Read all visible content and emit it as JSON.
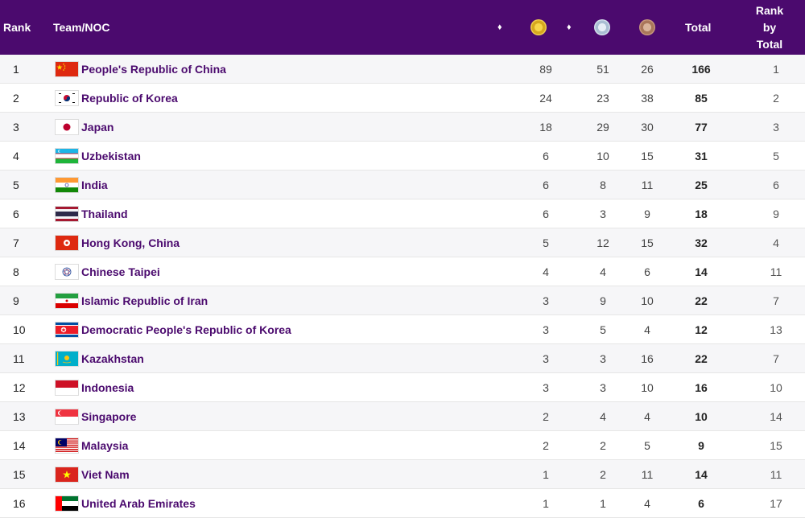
{
  "header": {
    "rank": "Rank",
    "team": "Team/NOC",
    "sort_glyph": "♦",
    "total": "Total",
    "rank_by_total_lines": [
      "Rank",
      "by",
      "Total"
    ]
  },
  "rows": [
    {
      "rank": "1",
      "flag": "china-flag-icon",
      "name": "People's Republic of China",
      "gold": "89",
      "silver": "51",
      "bronze": "26",
      "total": "166",
      "rank_by_total": "1"
    },
    {
      "rank": "2",
      "flag": "korea-flag-icon",
      "name": "Republic of Korea",
      "gold": "24",
      "silver": "23",
      "bronze": "38",
      "total": "85",
      "rank_by_total": "2"
    },
    {
      "rank": "3",
      "flag": "japan-flag-icon",
      "name": "Japan",
      "gold": "18",
      "silver": "29",
      "bronze": "30",
      "total": "77",
      "rank_by_total": "3"
    },
    {
      "rank": "4",
      "flag": "uzbekistan-flag-icon",
      "name": "Uzbekistan",
      "gold": "6",
      "silver": "10",
      "bronze": "15",
      "total": "31",
      "rank_by_total": "5"
    },
    {
      "rank": "5",
      "flag": "india-flag-icon",
      "name": "India",
      "gold": "6",
      "silver": "8",
      "bronze": "11",
      "total": "25",
      "rank_by_total": "6"
    },
    {
      "rank": "6",
      "flag": "thailand-flag-icon",
      "name": "Thailand",
      "gold": "6",
      "silver": "3",
      "bronze": "9",
      "total": "18",
      "rank_by_total": "9"
    },
    {
      "rank": "7",
      "flag": "hongkong-flag-icon",
      "name": "Hong Kong, China",
      "gold": "5",
      "silver": "12",
      "bronze": "15",
      "total": "32",
      "rank_by_total": "4"
    },
    {
      "rank": "8",
      "flag": "taipei-flag-icon",
      "name": "Chinese Taipei",
      "gold": "4",
      "silver": "4",
      "bronze": "6",
      "total": "14",
      "rank_by_total": "11"
    },
    {
      "rank": "9",
      "flag": "iran-flag-icon",
      "name": "Islamic Republic of Iran",
      "gold": "3",
      "silver": "9",
      "bronze": "10",
      "total": "22",
      "rank_by_total": "7"
    },
    {
      "rank": "10",
      "flag": "dprk-flag-icon",
      "name": "Democratic People's Republic of Korea",
      "gold": "3",
      "silver": "5",
      "bronze": "4",
      "total": "12",
      "rank_by_total": "13"
    },
    {
      "rank": "11",
      "flag": "kazakhstan-flag-icon",
      "name": "Kazakhstan",
      "gold": "3",
      "silver": "3",
      "bronze": "16",
      "total": "22",
      "rank_by_total": "7"
    },
    {
      "rank": "12",
      "flag": "indonesia-flag-icon",
      "name": "Indonesia",
      "gold": "3",
      "silver": "3",
      "bronze": "10",
      "total": "16",
      "rank_by_total": "10"
    },
    {
      "rank": "13",
      "flag": "singapore-flag-icon",
      "name": "Singapore",
      "gold": "2",
      "silver": "4",
      "bronze": "4",
      "total": "10",
      "rank_by_total": "14"
    },
    {
      "rank": "14",
      "flag": "malaysia-flag-icon",
      "name": "Malaysia",
      "gold": "2",
      "silver": "2",
      "bronze": "5",
      "total": "9",
      "rank_by_total": "15"
    },
    {
      "rank": "15",
      "flag": "vietnam-flag-icon",
      "name": "Viet Nam",
      "gold": "1",
      "silver": "2",
      "bronze": "11",
      "total": "14",
      "rank_by_total": "11"
    },
    {
      "rank": "16",
      "flag": "uae-flag-icon",
      "name": "United Arab Emirates",
      "gold": "1",
      "silver": "1",
      "bronze": "4",
      "total": "6",
      "rank_by_total": "17"
    }
  ],
  "colors": {
    "header_bg": "#4b0a6e",
    "team_name": "#4b0a6e",
    "row_alt": "#f6f6f8"
  }
}
